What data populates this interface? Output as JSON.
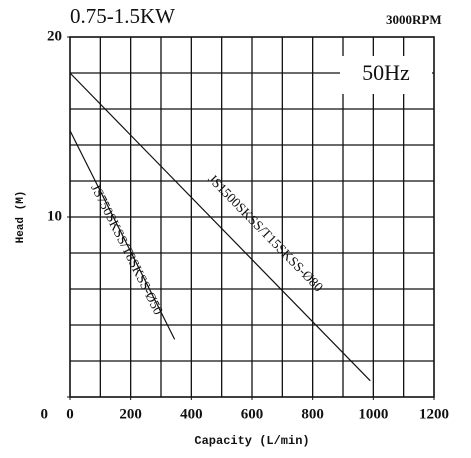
{
  "chart_data": {
    "type": "line",
    "title": "0.75-1.5KW",
    "subtitle": "3000RPM",
    "annotation": "50Hz",
    "x_label": "Capacity (L/min)",
    "y_label": "Head (M)",
    "series": [
      {
        "name": "JS750SKSS/T8SKSS-Ø50",
        "color": "#111111",
        "x": [
          0,
          345
        ],
        "values": [
          14.8,
          3.2
        ]
      },
      {
        "name": "JS1500SKSS/T15SKSS-Ø80",
        "color": "#111111",
        "x": [
          0,
          990
        ],
        "values": [
          18,
          0.9
        ]
      }
    ],
    "xlim": [
      0,
      1200
    ],
    "xticks": [
      0,
      200,
      400,
      600,
      800,
      1000,
      1200
    ],
    "ylim": [
      0,
      20
    ],
    "yticks": [
      0,
      10,
      20
    ],
    "xgrid": [
      100,
      200,
      300,
      400,
      500,
      600,
      700,
      800,
      900,
      1000,
      1100
    ],
    "ygrid": [
      2,
      4,
      6,
      8,
      10,
      12,
      14,
      16,
      18
    ],
    "grid": true
  }
}
